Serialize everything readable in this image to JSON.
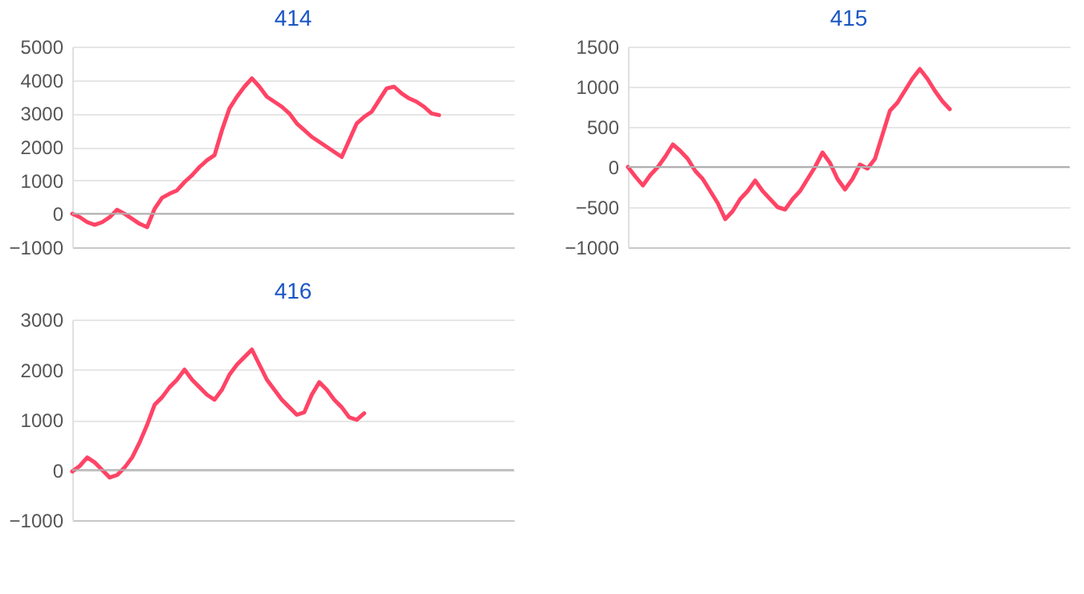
{
  "chart_data": [
    {
      "type": "line",
      "title": "414",
      "categories": [
        null,
        null,
        null,
        null,
        null,
        null,
        null,
        null,
        null,
        null,
        null,
        null,
        null,
        null,
        null,
        null,
        null,
        null,
        null,
        null,
        null,
        null,
        null,
        null,
        null,
        null,
        null,
        null,
        null,
        null,
        null,
        null,
        null,
        null,
        null,
        null,
        null,
        null,
        null,
        null,
        null,
        null,
        null,
        null,
        null,
        null,
        null,
        null,
        null,
        null,
        null,
        null,
        null,
        null,
        null,
        null,
        null,
        null,
        null,
        null
      ],
      "series": [
        {
          "color": "#ff4466",
          "values": [
            0,
            -100,
            -250,
            -330,
            -250,
            -100,
            120,
            0,
            -150,
            -300,
            -400,
            150,
            480,
            600,
            700,
            950,
            1150,
            1400,
            1600,
            1750,
            2500,
            3150,
            3500,
            3800,
            4050,
            3800,
            3500,
            3350,
            3200,
            3000,
            2700,
            2500,
            2300,
            2150,
            2000,
            1850,
            1700,
            2200,
            2700,
            2900,
            3050,
            3400,
            3750,
            3800,
            3600,
            3450,
            3350,
            3200,
            3000,
            2950,
            null,
            null,
            null,
            null,
            null,
            null,
            null,
            null,
            null,
            null
          ]
        }
      ],
      "ylim": [
        -1000,
        5000
      ],
      "yticks": [
        -1000,
        0,
        1000,
        2000,
        3000,
        4000,
        5000
      ],
      "grid": "y",
      "tick_labels": "y",
      "marker": "none",
      "line_style": "solid"
    },
    {
      "type": "line",
      "title": "415",
      "categories": [
        null,
        null,
        null,
        null,
        null,
        null,
        null,
        null,
        null,
        null,
        null,
        null,
        null,
        null,
        null,
        null,
        null,
        null,
        null,
        null,
        null,
        null,
        null,
        null,
        null,
        null,
        null,
        null,
        null,
        null,
        null,
        null,
        null,
        null,
        null,
        null,
        null,
        null,
        null,
        null,
        null,
        null,
        null,
        null,
        null,
        null,
        null,
        null,
        null,
        null,
        null,
        null,
        null,
        null,
        null,
        null,
        null,
        null,
        null,
        null
      ],
      "series": [
        {
          "color": "#ff4466",
          "values": [
            0,
            -120,
            -230,
            -100,
            0,
            130,
            280,
            200,
            100,
            -50,
            -150,
            -300,
            -450,
            -650,
            -550,
            -400,
            -300,
            -170,
            -300,
            -400,
            -500,
            -530,
            -400,
            -300,
            -150,
            0,
            180,
            50,
            -150,
            -280,
            -150,
            30,
            -20,
            100,
            400,
            700,
            800,
            950,
            1100,
            1220,
            1100,
            950,
            820,
            720,
            null,
            null,
            null,
            null,
            null,
            null,
            null,
            null,
            null,
            null,
            null,
            null,
            null,
            null,
            null,
            null
          ]
        }
      ],
      "ylim": [
        -1000,
        1500
      ],
      "yticks": [
        -1000,
        -500,
        0,
        500,
        1000,
        1500
      ],
      "grid": "y",
      "tick_labels": "y",
      "marker": "none",
      "line_style": "solid"
    },
    {
      "type": "line",
      "title": "416",
      "categories": [
        null,
        null,
        null,
        null,
        null,
        null,
        null,
        null,
        null,
        null,
        null,
        null,
        null,
        null,
        null,
        null,
        null,
        null,
        null,
        null,
        null,
        null,
        null,
        null,
        null,
        null,
        null,
        null,
        null,
        null,
        null,
        null,
        null,
        null,
        null,
        null,
        null,
        null,
        null,
        null,
        null,
        null,
        null,
        null,
        null,
        null,
        null,
        null,
        null,
        null,
        null,
        null,
        null,
        null,
        null,
        null,
        null,
        null,
        null,
        null
      ],
      "series": [
        {
          "color": "#ff4466",
          "values": [
            -30,
            80,
            250,
            150,
            0,
            -150,
            -100,
            50,
            250,
            550,
            900,
            1300,
            1450,
            1650,
            1800,
            2000,
            1800,
            1650,
            1500,
            1400,
            1600,
            1900,
            2100,
            2250,
            2400,
            2100,
            1800,
            1600,
            1400,
            1250,
            1100,
            1150,
            1500,
            1750,
            1600,
            1400,
            1250,
            1050,
            1000,
            1130,
            null,
            null,
            null,
            null,
            null,
            null,
            null,
            null,
            null,
            null,
            null,
            null,
            null,
            null,
            null,
            null,
            null,
            null,
            null,
            null
          ]
        }
      ],
      "ylim": [
        -1000,
        3000
      ],
      "yticks": [
        -1000,
        0,
        1000,
        2000,
        3000
      ],
      "grid": "y",
      "tick_labels": "y",
      "marker": "none",
      "line_style": "solid"
    }
  ]
}
